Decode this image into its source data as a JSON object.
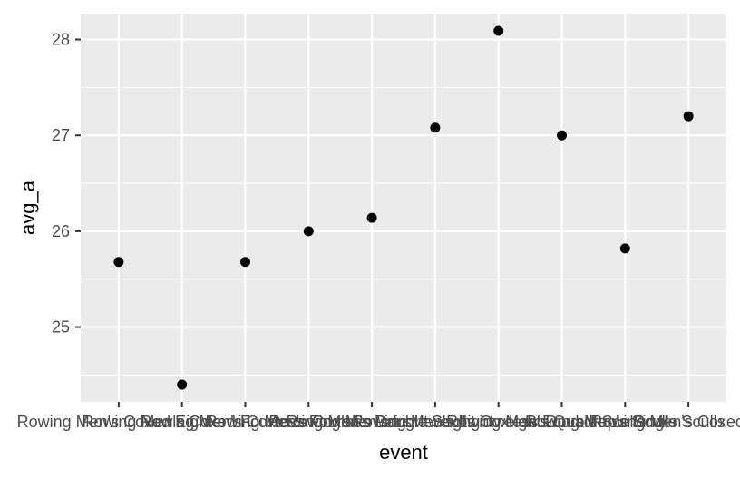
{
  "chart_data": {
    "type": "scatter",
    "xlabel": "event",
    "ylabel": "avg_a",
    "categories": [
      "Rowing Men's Coxed Eights",
      "Rowing Men's Coxed Fours",
      "Rowing Men's Coxless Fours",
      "Rowing Men's Coxless Pairs",
      "Rowing Men's Double Sculls",
      "Rowing Men's Lightweight Coxless Fours",
      "Rowing Men's Lightweight Double Sculls",
      "Rowing Men's Quadruple Sculls",
      "Rowing Men's Single Sculls",
      "Rowing Men's Coxed Pairs"
    ],
    "values": [
      25.68,
      24.4,
      25.68,
      26.0,
      26.14,
      27.08,
      28.09,
      27.0,
      25.82,
      27.2
    ],
    "ylim": [
      24.22,
      28.27
    ],
    "yticks": [
      25,
      26,
      27,
      28
    ],
    "grid": true,
    "legend": "none",
    "colors": {
      "panel": "#ebebeb",
      "grid": "#ffffff",
      "point": "#000000",
      "tick_text": "#4d4d4d",
      "axis_title": "#000000"
    }
  }
}
